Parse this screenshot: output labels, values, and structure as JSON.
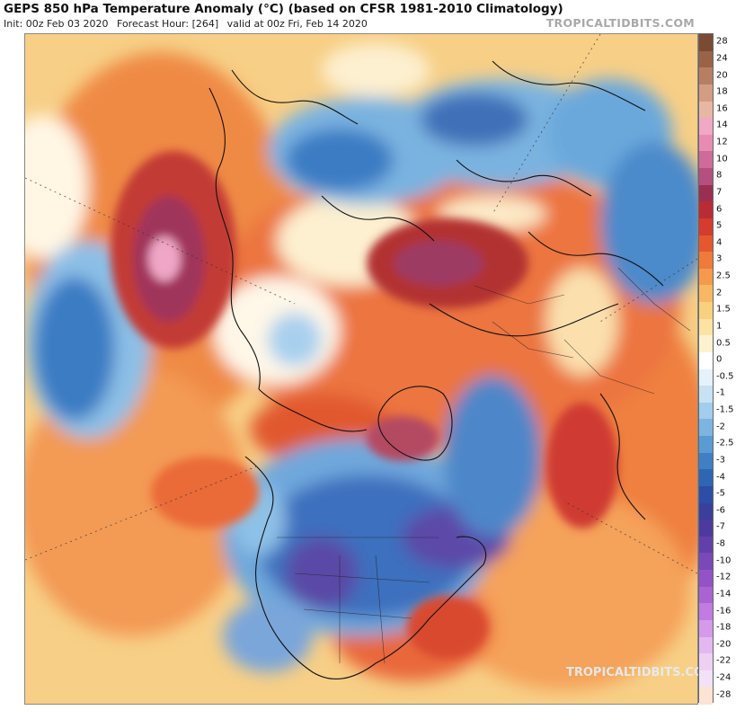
{
  "header": {
    "title": "GEPS 850 hPa Temperature Anomaly (°C) (based on CFSR 1981-2010 Climatology)",
    "init": "Init: 00z Feb 03 2020",
    "forecast_hour": "Forecast Hour: [264]",
    "valid": "valid at 00z Fri, Feb 14 2020",
    "brand": "TROPICALTIDBITS.COM"
  },
  "watermark": "TROPICALTIDBITS.COM",
  "legend": {
    "levels": [
      {
        "label": "28",
        "color": "#7a4a34"
      },
      {
        "label": "24",
        "color": "#9a6348"
      },
      {
        "label": "20",
        "color": "#b97e62"
      },
      {
        "label": "18",
        "color": "#d49c82"
      },
      {
        "label": "16",
        "color": "#e8b7a3"
      },
      {
        "label": "14",
        "color": "#f0a8c4"
      },
      {
        "label": "12",
        "color": "#e88bb3"
      },
      {
        "label": "10",
        "color": "#cf6b9a"
      },
      {
        "label": "8",
        "color": "#b44f7e"
      },
      {
        "label": "7",
        "color": "#9a2f52"
      },
      {
        "label": "6",
        "color": "#b92c35"
      },
      {
        "label": "5",
        "color": "#d53b2e"
      },
      {
        "label": "4",
        "color": "#e5582f"
      },
      {
        "label": "3",
        "color": "#ef7a3a"
      },
      {
        "label": "2.5",
        "color": "#f59a4c"
      },
      {
        "label": "2",
        "color": "#f8b762"
      },
      {
        "label": "1.5",
        "color": "#fad07e"
      },
      {
        "label": "1",
        "color": "#fce3a2"
      },
      {
        "label": "0.5",
        "color": "#fdf2cf"
      },
      {
        "label": "0",
        "color": "#ffffff"
      },
      {
        "label": "-0.5",
        "color": "#e6f2fb"
      },
      {
        "label": "-1",
        "color": "#c7e2f4"
      },
      {
        "label": "-1.5",
        "color": "#a2cdec"
      },
      {
        "label": "-2",
        "color": "#7db5e1"
      },
      {
        "label": "-2.5",
        "color": "#5a9bd4"
      },
      {
        "label": "-3",
        "color": "#3f80c4"
      },
      {
        "label": "-4",
        "color": "#2e66b4"
      },
      {
        "label": "-5",
        "color": "#2c4ea6"
      },
      {
        "label": "-6",
        "color": "#3a3f9c"
      },
      {
        "label": "-7",
        "color": "#4d3a9e"
      },
      {
        "label": "-8",
        "color": "#6240aa"
      },
      {
        "label": "-10",
        "color": "#7a48b8"
      },
      {
        "label": "-12",
        "color": "#9353c6"
      },
      {
        "label": "-14",
        "color": "#ab63d3"
      },
      {
        "label": "-16",
        "color": "#c27be0"
      },
      {
        "label": "-18",
        "color": "#d59aea"
      },
      {
        "label": "-20",
        "color": "#e3b8f1"
      },
      {
        "label": "-22",
        "color": "#eed0f5"
      },
      {
        "label": "-24",
        "color": "#f3e1f8"
      },
      {
        "label": "-28",
        "color": "#fde3d4"
      }
    ]
  }
}
